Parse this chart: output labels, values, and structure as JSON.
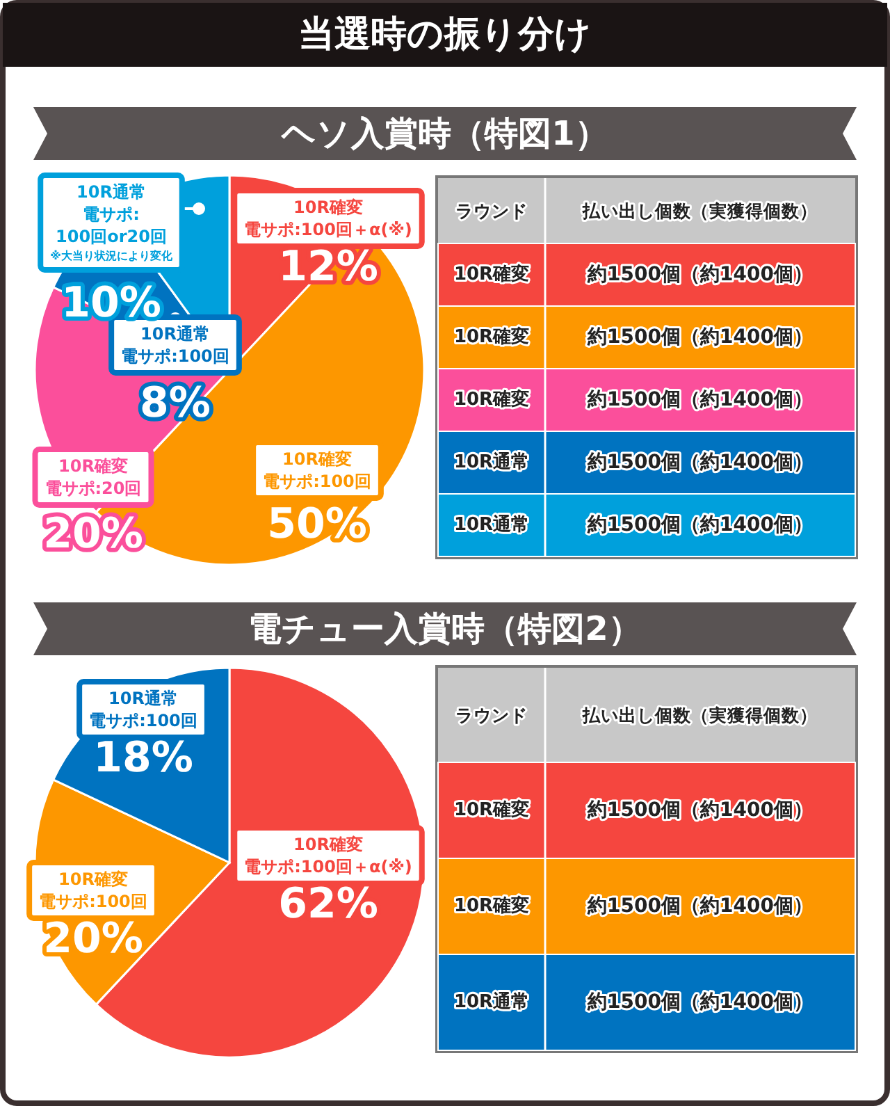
{
  "chart_data": [
    {
      "type": "pie",
      "title": "当選時の振り分け",
      "subtitle": "ヘソ入賞時（特図1）",
      "categories": [
        "10R確変電サポ:100回＋α(※)",
        "10R確変電サポ:100回",
        "10R確変電サポ:20回",
        "10R通常電サポ:100回",
        "10R通常電サポ:100回or20回"
      ],
      "values": [
        12,
        50,
        20,
        8,
        10
      ],
      "value_labels": [
        "12%",
        "50%",
        "20%",
        "8%",
        "10%"
      ],
      "colors": [
        "#f5463f",
        "#fd9700",
        "#fb4f9b",
        "#0073c0",
        "#00a0dc"
      ],
      "annotations": [
        "※大当り状況により変化"
      ]
    },
    {
      "type": "other",
      "annotations": [
        "ラウンド",
        "払い出し個数（実獲得個数）",
        "10R確変",
        "約1500個（約1400個）",
        "10R確変",
        "約1500個（約1400個）",
        "10R確変",
        "約1500個（約1400個）",
        "10R通常",
        "約1500個（約1400個）",
        "10R通常",
        "約1500個（約1400個）"
      ],
      "colors": [
        "#f5463f",
        "#fd9700",
        "#fb4f9b",
        "#0073c0",
        "#00a0dc"
      ]
    },
    {
      "type": "pie",
      "subtitle": "電チュー入賞時（特図2）",
      "categories": [
        "10R確変電サポ:100回＋α(※)",
        "10R確変電サポ:100回",
        "10R通常電サポ:100回"
      ],
      "values": [
        62,
        20,
        18
      ],
      "value_labels": [
        "62%",
        "20%",
        "18%"
      ],
      "colors": [
        "#f5463f",
        "#fd9700",
        "#0073c0"
      ]
    },
    {
      "type": "other",
      "annotations": [
        "ラウンド",
        "払い出し個数（実獲得個数）",
        "10R確変",
        "約1500個（約1400個）",
        "10R確変",
        "約1500個（約1400個）",
        "10R通常",
        "約1500個（約1400個）"
      ],
      "colors": [
        "#f5463f",
        "#fd9700",
        "#0073c0"
      ]
    }
  ]
}
